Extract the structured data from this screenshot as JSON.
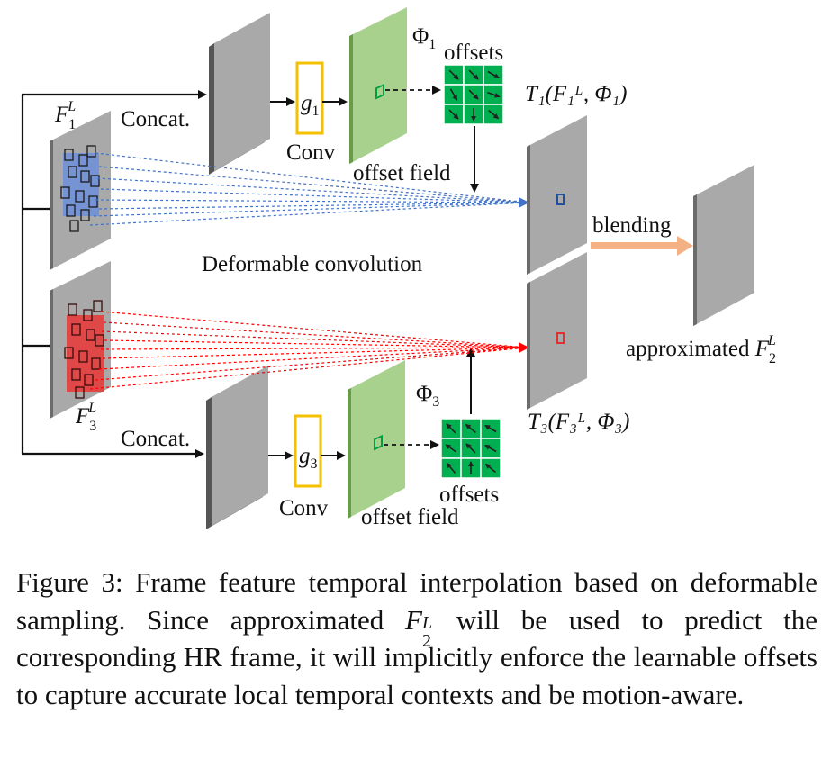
{
  "diagram": {
    "labels": {
      "concat_top": "Concat.",
      "concat_bottom": "Concat.",
      "conv_top": "Conv",
      "conv_bottom": "Conv",
      "g1": "g",
      "g1_sub": "1",
      "g3": "g",
      "g3_sub": "3",
      "phi1": "Φ",
      "phi1_sub": "1",
      "phi3": "Φ",
      "phi3_sub": "3",
      "offsets_top": "offsets",
      "offsets_bottom": "offsets",
      "offset_field_top": "offset field",
      "offset_field_bottom": "offset field",
      "deformable_convolution": "Deformable convolution",
      "blending": "blending",
      "approximated": "approximated ",
      "f1_main": "F",
      "f1_sub": "1",
      "f1_sup": "L",
      "f3_main": "F",
      "f3_sub": "3",
      "f3_sup": "L",
      "f2_main": "F",
      "f2_sub": "2",
      "f2_sup": "L",
      "t1_expr": "T₁(F₁ᴸ, Φ₁)",
      "t3_expr": "T₃(F₃ᴸ, Φ₃)"
    },
    "colors": {
      "frame_gray": "#a9a9a9",
      "frame_side": "#5a5a5a",
      "offset_field_green": "#a9d18e",
      "offset_grid_green": "#00b050",
      "conv_border": "#f5c000",
      "blue_patch": "#6f8fd6",
      "red_patch": "#e04848",
      "blending_arrow": "#f4b183",
      "blue_lines": "#4472c4",
      "red_lines": "#ff0000"
    },
    "icons": {
      "offset_arrows": "arrow-icon"
    }
  },
  "caption": {
    "prefix": "Figure 3: Frame feature temporal interpolation based on deformable sampling. Since approximated ",
    "math_main": "F",
    "math_sup": "L",
    "math_sub": "2",
    "suffix": " will be used to predict the corresponding HR frame, it will implicitly enforce the learnable offsets to capture accurate local temporal contexts and be motion-aware."
  }
}
